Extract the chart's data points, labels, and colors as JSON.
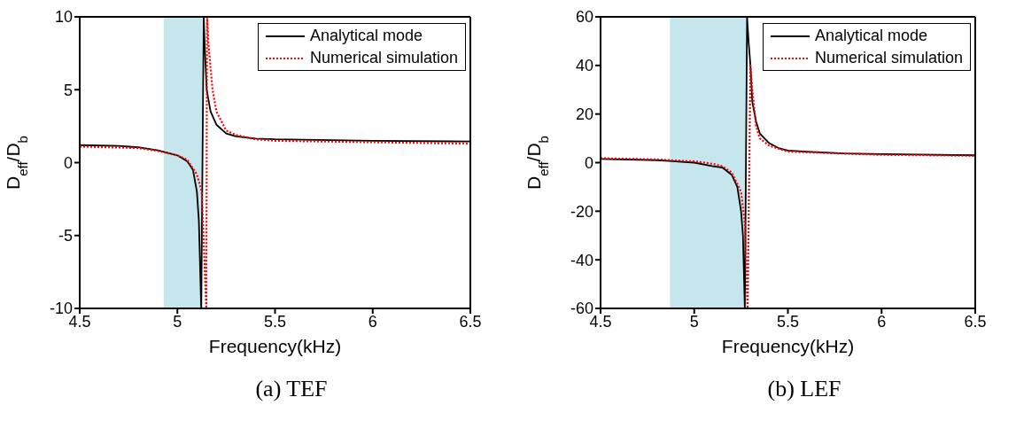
{
  "chart_data": [
    {
      "type": "line",
      "title": "(a) TEF",
      "xlabel": "Frequency(kHz)",
      "ylabel": "D$_{eff}$/D$_{b}$",
      "xlim": [
        4.5,
        6.5
      ],
      "xticks": [
        4.5,
        5,
        5.5,
        6,
        6.5
      ],
      "ylim": [
        -10,
        10
      ],
      "yticks": [
        -10,
        -5,
        0,
        5,
        10
      ],
      "grid": false,
      "legend": "top right",
      "marker": "none",
      "bands": [
        {
          "axis": "x",
          "from": 4.93,
          "to": 5.13,
          "color": "#c5e6ec"
        }
      ],
      "series": [
        {
          "name": "Analytical mode",
          "color": "#000000",
          "line_style": "solid",
          "x": [
            4.5,
            4.7,
            4.8,
            4.9,
            5.0,
            5.05,
            5.08,
            5.1,
            5.11,
            5.122,
            5.135,
            5.14,
            5.15,
            5.17,
            5.2,
            5.25,
            5.3,
            5.4,
            5.5,
            6.0,
            6.5
          ],
          "values": [
            1.2,
            1.15,
            1.05,
            0.85,
            0.5,
            0.1,
            -0.5,
            -2,
            -4,
            -10,
            10,
            8,
            5,
            3.5,
            2.6,
            2.0,
            1.8,
            1.65,
            1.6,
            1.5,
            1.45
          ]
        },
        {
          "name": "Numerical simulation",
          "color": "#ff0000",
          "line_style": "dotted",
          "x": [
            4.5,
            4.8,
            4.9,
            5.0,
            5.05,
            5.1,
            5.125,
            5.148,
            5.152,
            5.16,
            5.18,
            5.2,
            5.25,
            5.3,
            5.4,
            5.5,
            6.0,
            6.5
          ],
          "values": [
            1.1,
            1.0,
            0.8,
            0.5,
            0.2,
            -0.8,
            -2,
            -10,
            10,
            8,
            5,
            3.5,
            2.2,
            1.9,
            1.6,
            1.5,
            1.4,
            1.3
          ]
        }
      ]
    },
    {
      "type": "line",
      "title": "(b) LEF",
      "xlabel": "Frequency(kHz)",
      "ylabel": "D$_{eff}$/D$_{b}$",
      "xlim": [
        4.5,
        6.5
      ],
      "xticks": [
        4.5,
        5,
        5.5,
        6,
        6.5
      ],
      "ylim": [
        -60,
        60
      ],
      "yticks": [
        -60,
        -40,
        -20,
        0,
        20,
        40,
        60
      ],
      "grid": false,
      "legend": "top right",
      "marker": "none",
      "bands": [
        {
          "axis": "x",
          "from": 4.87,
          "to": 5.28,
          "color": "#c5e6ec"
        }
      ],
      "series": [
        {
          "name": "Analytical mode",
          "color": "#000000",
          "line_style": "solid",
          "x": [
            4.5,
            4.8,
            5.0,
            5.1,
            5.15,
            5.2,
            5.23,
            5.25,
            5.26,
            5.27,
            5.282,
            5.29,
            5.3,
            5.31,
            5.33,
            5.35,
            5.4,
            5.45,
            5.5,
            5.6,
            5.8,
            6.0,
            6.5
          ],
          "values": [
            1.5,
            1,
            0,
            -1.5,
            -2,
            -5,
            -10,
            -20,
            -30,
            -60,
            60,
            50,
            40,
            25,
            17,
            12,
            8,
            6,
            5,
            4.5,
            3.8,
            3.5,
            3
          ]
        },
        {
          "name": "Numerical simulation",
          "color": "#ff0000",
          "line_style": "dotted",
          "x": [
            4.5,
            4.8,
            5.0,
            5.1,
            5.15,
            5.2,
            5.25,
            5.27,
            5.285,
            5.3,
            5.31,
            5.33,
            5.35,
            5.4,
            5.5,
            6.0,
            6.5
          ],
          "values": [
            1.8,
            1.3,
            0.5,
            -0.5,
            -1.5,
            -4,
            -12,
            -25,
            -60,
            40,
            30,
            15,
            10,
            7,
            4.5,
            3.2,
            2.8
          ]
        }
      ]
    }
  ]
}
